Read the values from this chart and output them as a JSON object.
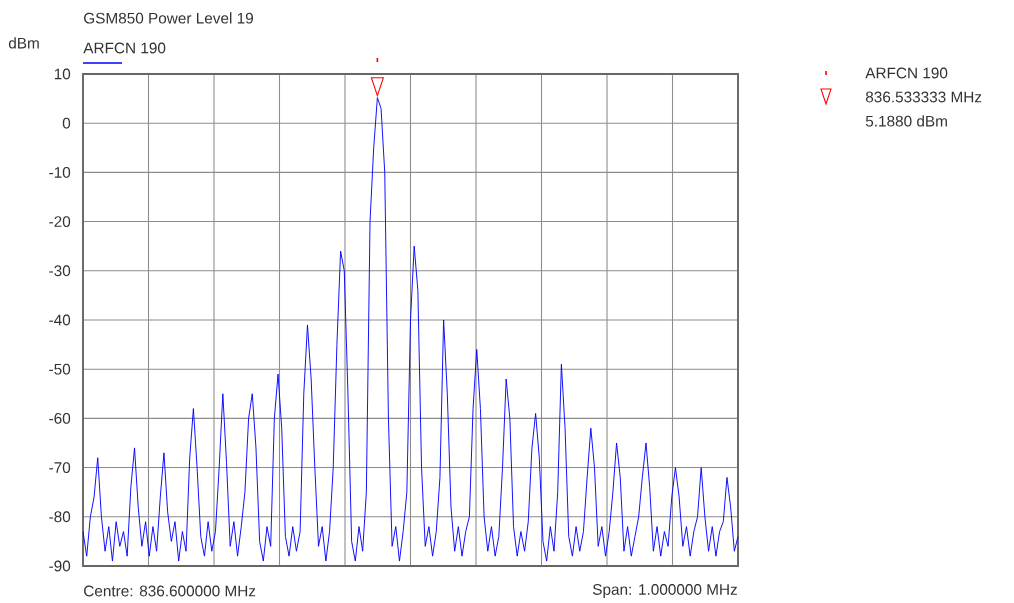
{
  "chart_data": {
    "type": "line",
    "title": "GSM850  Power Level 19",
    "ylabel": "dBm",
    "categories": [
      null,
      null,
      null,
      null,
      null,
      null,
      null,
      null,
      null,
      null,
      null,
      null,
      null,
      null,
      null,
      null,
      null,
      null,
      null,
      null,
      null,
      null,
      null,
      null,
      null,
      null,
      null,
      null,
      null,
      null,
      null,
      null,
      null,
      null,
      null,
      null,
      null,
      null,
      null,
      null,
      null,
      null,
      null,
      null,
      null,
      null,
      null,
      null,
      null,
      null,
      null,
      null,
      null,
      null,
      null,
      null,
      null,
      null,
      null,
      null,
      null,
      null,
      null,
      null,
      null,
      null,
      null,
      null,
      null,
      null,
      null,
      null,
      null,
      null,
      null,
      null,
      null,
      null,
      null,
      null,
      null,
      null,
      null,
      null,
      null,
      null,
      null,
      null,
      null,
      null,
      null,
      null,
      null,
      null,
      null,
      null,
      null,
      null,
      null,
      null,
      null,
      null,
      null,
      null,
      null,
      null,
      null,
      null,
      null,
      null,
      null,
      null,
      null,
      null,
      null,
      null,
      null,
      null,
      null,
      null,
      null,
      null,
      null,
      null,
      null,
      null,
      null,
      null,
      null,
      null,
      null,
      null,
      null,
      null,
      null,
      null,
      null,
      null,
      null,
      null,
      null,
      null,
      null,
      null,
      null,
      null,
      null,
      null,
      null,
      null,
      null,
      null,
      null,
      null,
      null,
      null,
      null,
      null,
      null,
      null,
      null,
      null,
      null,
      null,
      null,
      null,
      null,
      null,
      null,
      null,
      null,
      null,
      null,
      null,
      null,
      null,
      null,
      null,
      null
    ],
    "ylim": [
      -90,
      10
    ],
    "yticks": [
      -90,
      -80,
      -70,
      -60,
      -50,
      -40,
      -30,
      -20,
      -10,
      0,
      10
    ],
    "tick_labels": "y",
    "grid": true,
    "legend": "top left",
    "series": [
      {
        "name": "ARFCN 190",
        "color": "#0000ff",
        "values": [
          -83,
          -88,
          -80,
          -76,
          -68,
          -80,
          -87,
          -82,
          -89,
          -81,
          -86,
          -83,
          -88,
          -74,
          -66,
          -78,
          -86,
          -81,
          -88,
          -82,
          -87,
          -76,
          -67,
          -79,
          -85,
          -81,
          -89,
          -83,
          -87,
          -68,
          -58,
          -70,
          -84,
          -88,
          -81,
          -87,
          -83,
          -70,
          -55,
          -69,
          -86,
          -81,
          -88,
          -82,
          -75,
          -60,
          -55,
          -66,
          -85,
          -89,
          -82,
          -86,
          -60,
          -51,
          -62,
          -84,
          -88,
          -82,
          -87,
          -83,
          -55,
          -41,
          -52,
          -70,
          -86,
          -82,
          -89,
          -83,
          -70,
          -45,
          -26,
          -30,
          -55,
          -85,
          -89,
          -82,
          -87,
          -75,
          -20,
          -5,
          5.188,
          3,
          -10,
          -60,
          -86,
          -82,
          -89,
          -83,
          -75,
          -40,
          -25,
          -34,
          -70,
          -86,
          -82,
          -88,
          -83,
          -72,
          -40,
          -55,
          -78,
          -87,
          -82,
          -88,
          -83,
          -80,
          -58,
          -46,
          -58,
          -80,
          -87,
          -82,
          -88,
          -84,
          -70,
          -52,
          -60,
          -82,
          -88,
          -83,
          -87,
          -81,
          -66,
          -59,
          -68,
          -85,
          -89,
          -82,
          -87,
          -75,
          -49,
          -62,
          -84,
          -88,
          -82,
          -87,
          -83,
          -72,
          -62,
          -70,
          -86,
          -82,
          -88,
          -83,
          -75,
          -65,
          -72,
          -87,
          -82,
          -88,
          -84,
          -80,
          -72,
          -65,
          -74,
          -87,
          -82,
          -88,
          -83,
          -86,
          -76,
          -70,
          -76,
          -86,
          -82,
          -88,
          -83,
          -80,
          -70,
          -80,
          -87,
          -82,
          -88,
          -83,
          -81,
          -72,
          -78,
          -87,
          -84
        ]
      }
    ],
    "annotations": [
      "ARFCN 190",
      "836.533333 MHz",
      "5.1880 dBm",
      "Centre: 836.600000 MHz",
      "Span: 1.000000 MHz"
    ]
  }
}
